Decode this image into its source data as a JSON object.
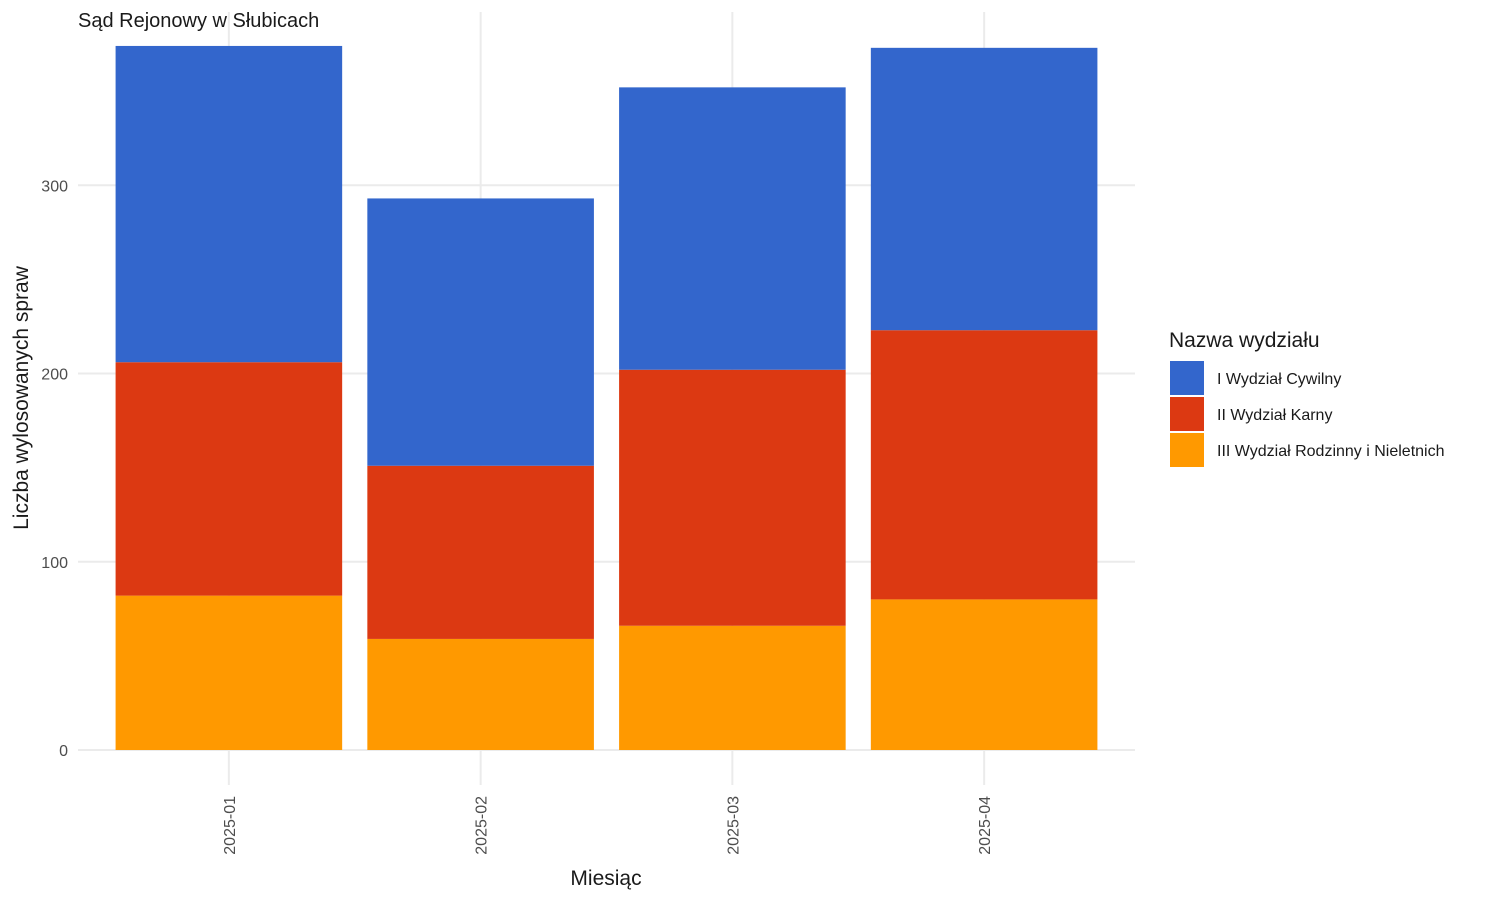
{
  "chart_data": {
    "type": "bar",
    "stacked": true,
    "title": "Sąd Rejonowy w Słubicach",
    "xlabel": "Miesiąc",
    "ylabel": "Liczba wylosowanych spraw",
    "categories": [
      "2025-01",
      "2025-02",
      "2025-03",
      "2025-04"
    ],
    "yticks": [
      0,
      100,
      200,
      300
    ],
    "ylim": [
      0,
      392
    ],
    "grid": true,
    "legend": {
      "title": "Nazwa wydziału",
      "position": "right"
    },
    "series": [
      {
        "name": "III Wydział Rodzinny i Nieletnich",
        "color": "#FF9900",
        "values": [
          82,
          59,
          66,
          80
        ]
      },
      {
        "name": "II Wydział Karny",
        "color": "#DC3912",
        "values": [
          124,
          92,
          136,
          143
        ]
      },
      {
        "name": "I Wydział Cywilny",
        "color": "#3366CC",
        "values": [
          168,
          142,
          150,
          150
        ]
      }
    ],
    "legend_order": [
      "I Wydział Cywilny",
      "II Wydział Karny",
      "III Wydział Rodzinny i Nieletnich"
    ]
  }
}
